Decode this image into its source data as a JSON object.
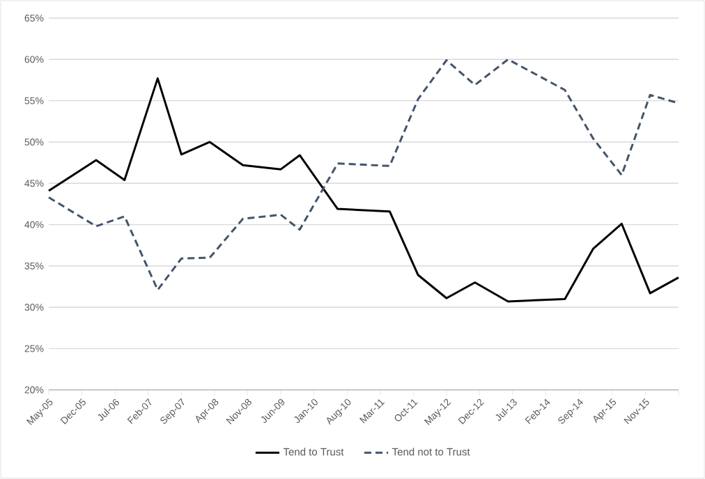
{
  "chart_data": {
    "type": "line",
    "series": [
      {
        "name": "Tend to Trust",
        "color": "#000000",
        "line_style": "solid",
        "x": [
          "2005-05",
          "2006-03",
          "2006-09",
          "2007-04",
          "2007-09",
          "2008-03",
          "2008-10",
          "2009-06",
          "2009-10",
          "2010-06",
          "2011-05",
          "2011-11",
          "2012-05",
          "2012-11",
          "2013-06",
          "2014-06",
          "2014-12",
          "2015-06",
          "2015-12",
          "2016-06"
        ],
        "values": [
          44.1,
          47.8,
          45.4,
          57.7,
          48.5,
          50.0,
          47.2,
          46.7,
          48.4,
          41.9,
          41.6,
          33.9,
          31.1,
          33.0,
          30.7,
          31.0,
          37.1,
          40.1,
          31.7,
          33.6
        ]
      },
      {
        "name": "Tend not to Trust",
        "color": "#44546a",
        "line_style": "dashed",
        "x": [
          "2005-05",
          "2006-03",
          "2006-09",
          "2007-04",
          "2007-09",
          "2008-03",
          "2008-10",
          "2009-06",
          "2009-10",
          "2010-06",
          "2011-05",
          "2011-11",
          "2012-05",
          "2012-11",
          "2013-06",
          "2014-06",
          "2014-12",
          "2015-06",
          "2015-12",
          "2016-06"
        ],
        "values": [
          43.3,
          39.8,
          41.0,
          32.1,
          35.9,
          36.0,
          40.7,
          41.2,
          39.4,
          47.4,
          47.1,
          55.2,
          59.9,
          56.9,
          60.0,
          56.3,
          50.4,
          46.0,
          55.7,
          54.7
        ]
      }
    ],
    "xlim": [
      "2005-05",
      "2016-06"
    ],
    "xticks": [
      {
        "value": "2005-05",
        "label": "May-05"
      },
      {
        "value": "2005-12",
        "label": "Dec-05"
      },
      {
        "value": "2006-07",
        "label": "Jul-06"
      },
      {
        "value": "2007-02",
        "label": "Feb-07"
      },
      {
        "value": "2007-09",
        "label": "Sep-07"
      },
      {
        "value": "2008-04",
        "label": "Apr-08"
      },
      {
        "value": "2008-11",
        "label": "Nov-08"
      },
      {
        "value": "2009-06",
        "label": "Jun-09"
      },
      {
        "value": "2010-01",
        "label": "Jan-10"
      },
      {
        "value": "2010-08",
        "label": "Aug-10"
      },
      {
        "value": "2011-03",
        "label": "Mar-11"
      },
      {
        "value": "2011-10",
        "label": "Oct-11"
      },
      {
        "value": "2012-05",
        "label": "May-12"
      },
      {
        "value": "2012-12",
        "label": "Dec-12"
      },
      {
        "value": "2013-07",
        "label": "Jul-13"
      },
      {
        "value": "2014-02",
        "label": "Feb-14"
      },
      {
        "value": "2014-09",
        "label": "Sep-14"
      },
      {
        "value": "2015-04",
        "label": "Apr-15"
      },
      {
        "value": "2015-11",
        "label": "Nov-15"
      },
      {
        "value": "2016-06",
        "label": null
      }
    ],
    "ylim": [
      20,
      65
    ],
    "yticks": [
      {
        "value": 20,
        "label": "20%"
      },
      {
        "value": 25,
        "label": "25%"
      },
      {
        "value": 30,
        "label": "30%"
      },
      {
        "value": 35,
        "label": "35%"
      },
      {
        "value": 40,
        "label": "40%"
      },
      {
        "value": 45,
        "label": "45%"
      },
      {
        "value": 50,
        "label": "50%"
      },
      {
        "value": 55,
        "label": "55%"
      },
      {
        "value": 60,
        "label": "60%"
      },
      {
        "value": 65,
        "label": "65%"
      }
    ],
    "grid": "y",
    "legend": "bottom",
    "marker": "none"
  }
}
